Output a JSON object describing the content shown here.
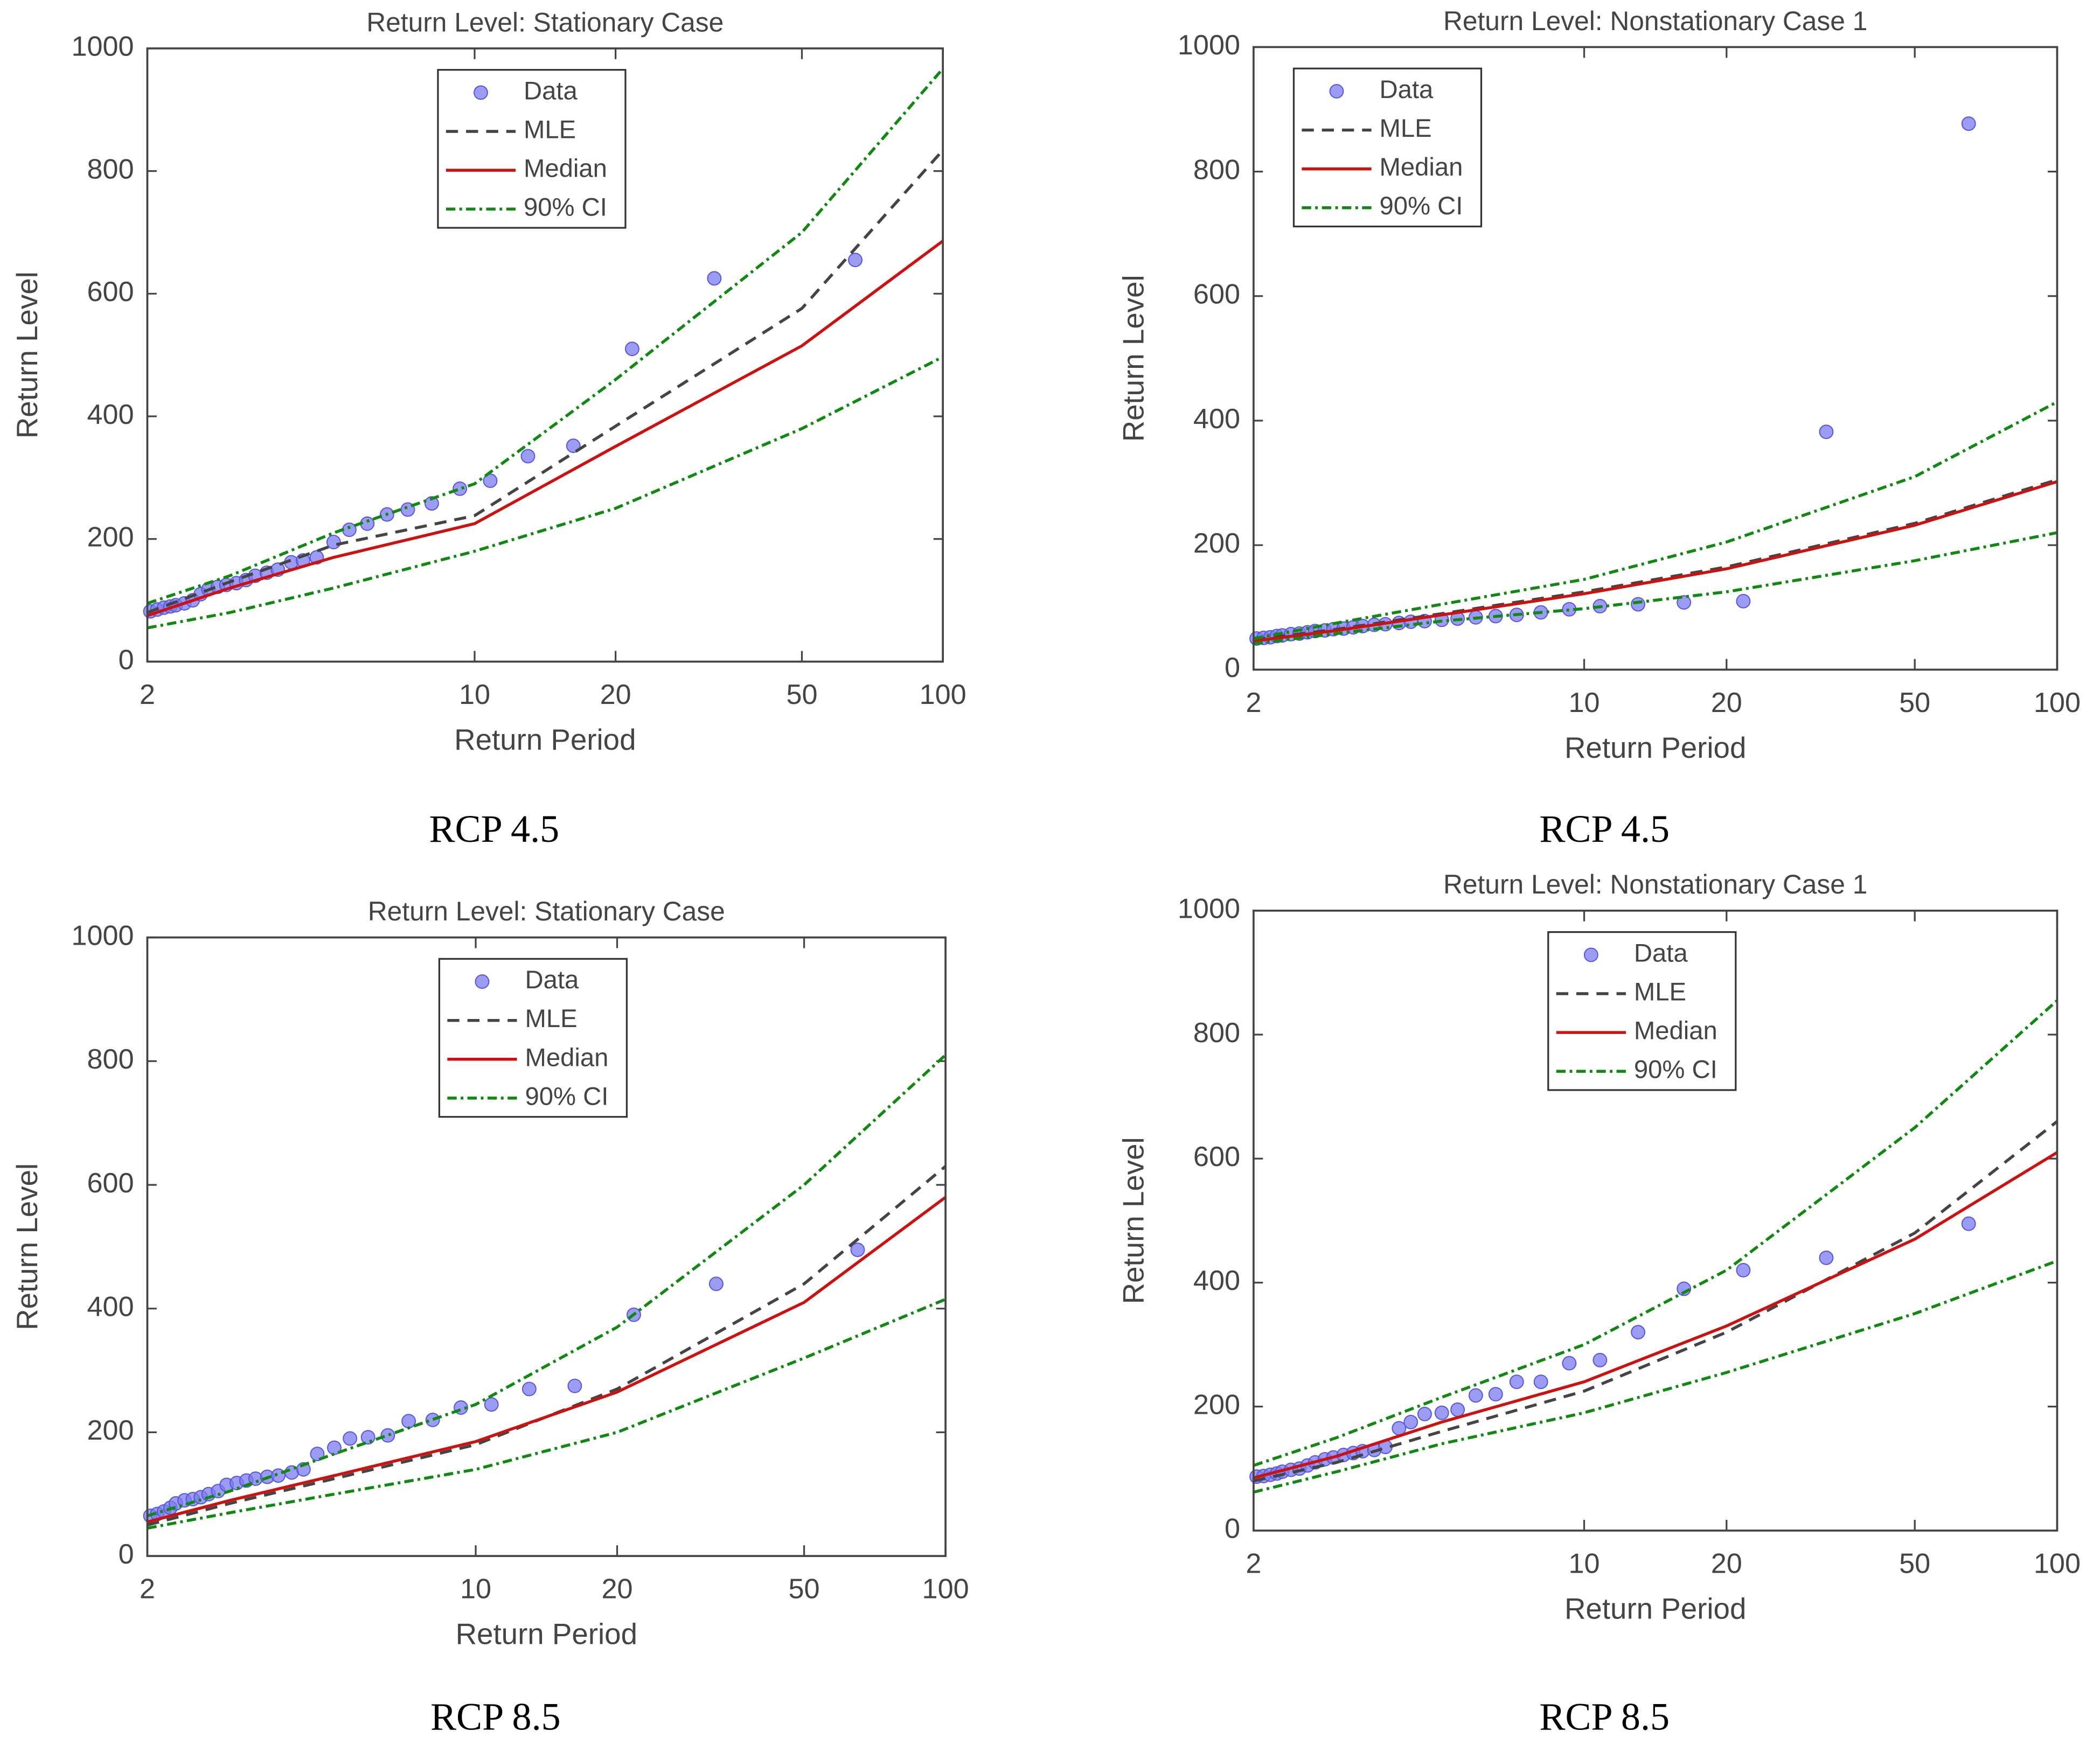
{
  "chart_data": [
    {
      "type": "line",
      "title": "Return Level: Stationary Case",
      "xlabel": "Return Period",
      "ylabel": "Return Level",
      "caption": "RCP 4.5",
      "xscale": "log",
      "xlim": [
        2,
        100
      ],
      "xticks": [
        2,
        10,
        20,
        50,
        100
      ],
      "ylim": [
        0,
        1000
      ],
      "yticks": [
        0,
        200,
        400,
        600,
        800,
        1000
      ],
      "legend": "top",
      "series": [
        {
          "name": "Data",
          "color": "#7b7bf0",
          "style": "marker",
          "x": [
            2.03,
            2.1,
            2.17,
            2.24,
            2.3,
            2.4,
            2.5,
            2.6,
            2.7,
            2.83,
            2.95,
            3.1,
            3.25,
            3.4,
            3.6,
            3.8,
            4.06,
            4.3,
            4.6,
            5.0,
            5.4,
            5.9,
            6.5,
            7.2,
            8.1,
            9.3,
            10.8,
            13,
            16.25,
            21.7,
            32.5,
            65
          ],
          "values": [
            82,
            85,
            88,
            90,
            92,
            95,
            100,
            110,
            118,
            122,
            125,
            128,
            133,
            140,
            145,
            150,
            162,
            165,
            170,
            195,
            215,
            225,
            240,
            248,
            258,
            282,
            295,
            335,
            352,
            510,
            625,
            655
          ]
        },
        {
          "name": "MLE",
          "color": "#444444",
          "style": "dashed",
          "x": [
            2,
            3,
            5,
            10,
            20,
            50,
            100
          ],
          "values": [
            80,
            130,
            190,
            238,
            384,
            576,
            834
          ]
        },
        {
          "name": "Median",
          "color": "#cc1111",
          "style": "solid",
          "x": [
            2,
            3,
            5,
            10,
            20,
            50,
            100
          ],
          "values": [
            75,
            120,
            170,
            225,
            351,
            515,
            686
          ]
        },
        {
          "name": "90% CI",
          "color": "#118811",
          "style": "dashdot",
          "x": [
            2,
            3,
            5,
            10,
            20,
            50,
            100
          ],
          "values": [
            95,
            140,
            210,
            290,
            460,
            700,
            967
          ],
          "lower": [
            55,
            80,
            120,
            180,
            250,
            380,
            497
          ]
        }
      ]
    },
    {
      "type": "line",
      "title": "Return Level: Nonstationary Case 1",
      "xlabel": "Return Period",
      "ylabel": "Return Level",
      "caption": "RCP 4.5",
      "xscale": "log",
      "xlim": [
        2,
        100
      ],
      "xticks": [
        2,
        10,
        20,
        50,
        100
      ],
      "ylim": [
        0,
        1000
      ],
      "yticks": [
        0,
        200,
        400,
        600,
        800,
        1000
      ],
      "legend": "top-left",
      "series": [
        {
          "name": "Data",
          "color": "#7b7bf0",
          "style": "marker",
          "x": [
            2.03,
            2.1,
            2.17,
            2.24,
            2.3,
            2.4,
            2.5,
            2.6,
            2.7,
            2.83,
            2.95,
            3.1,
            3.25,
            3.4,
            3.6,
            3.8,
            4.06,
            4.3,
            4.6,
            5.0,
            5.4,
            5.9,
            6.5,
            7.2,
            8.1,
            9.3,
            10.8,
            13,
            16.25,
            21.7,
            32.5,
            65
          ],
          "values": [
            50,
            51,
            52,
            54,
            55,
            57,
            58,
            60,
            62,
            63,
            65,
            66,
            68,
            70,
            72,
            73,
            75,
            77,
            78,
            80,
            82,
            84,
            86,
            88,
            92,
            97,
            102,
            105,
            108,
            110,
            382,
            877
          ]
        },
        {
          "name": "MLE",
          "color": "#444444",
          "style": "dashed",
          "x": [
            2,
            3,
            5,
            10,
            20,
            50,
            100
          ],
          "values": [
            48,
            65,
            90,
            125,
            165,
            235,
            305
          ]
        },
        {
          "name": "Median",
          "color": "#cc1111",
          "style": "solid",
          "x": [
            2,
            3,
            5,
            10,
            20,
            50,
            100
          ],
          "values": [
            46,
            63,
            88,
            122,
            162,
            232,
            302
          ]
        },
        {
          "name": "90% CI",
          "color": "#118811",
          "style": "dashdot",
          "x": [
            2,
            3,
            5,
            10,
            20,
            50,
            100
          ],
          "values": [
            50,
            75,
            105,
            145,
            205,
            310,
            430
          ],
          "lower": [
            42,
            58,
            78,
            98,
            125,
            175,
            220
          ]
        }
      ]
    },
    {
      "type": "line",
      "title": "Return Level: Stationary Case",
      "xlabel": "Return Period",
      "ylabel": "Return Level",
      "caption": "RCP 8.5",
      "xscale": "log",
      "xlim": [
        2,
        100
      ],
      "xticks": [
        2,
        10,
        20,
        50,
        100
      ],
      "ylim": [
        0,
        1000
      ],
      "yticks": [
        0,
        200,
        400,
        600,
        800,
        1000
      ],
      "legend": "top",
      "series": [
        {
          "name": "Data",
          "color": "#7b7bf0",
          "style": "marker",
          "x": [
            2.03,
            2.1,
            2.17,
            2.24,
            2.3,
            2.4,
            2.5,
            2.6,
            2.7,
            2.83,
            2.95,
            3.1,
            3.25,
            3.4,
            3.6,
            3.8,
            4.06,
            4.3,
            4.6,
            5.0,
            5.4,
            5.9,
            6.5,
            7.2,
            8.1,
            9.3,
            10.8,
            13,
            16.25,
            21.7,
            32.5,
            65
          ],
          "values": [
            65,
            68,
            72,
            78,
            85,
            90,
            92,
            95,
            100,
            105,
            115,
            118,
            122,
            125,
            128,
            130,
            135,
            140,
            165,
            175,
            190,
            192,
            195,
            218,
            220,
            240,
            245,
            270,
            275,
            390,
            440,
            495
          ]
        },
        {
          "name": "MLE",
          "color": "#444444",
          "style": "dashed",
          "x": [
            2,
            3,
            5,
            10,
            20,
            50,
            100
          ],
          "values": [
            50,
            85,
            125,
            180,
            270,
            440,
            630
          ]
        },
        {
          "name": "Median",
          "color": "#cc1111",
          "style": "solid",
          "x": [
            2,
            3,
            5,
            10,
            20,
            50,
            100
          ],
          "values": [
            55,
            90,
            130,
            185,
            265,
            410,
            580
          ]
        },
        {
          "name": "90% CI",
          "color": "#118811",
          "style": "dashdot",
          "x": [
            2,
            3,
            5,
            10,
            20,
            50,
            100
          ],
          "values": [
            65,
            105,
            165,
            245,
            370,
            600,
            810
          ],
          "lower": [
            45,
            70,
            100,
            140,
            200,
            320,
            415
          ]
        }
      ]
    },
    {
      "type": "line",
      "title": "Return Level: Nonstationary Case 1",
      "xlabel": "Return Period",
      "ylabel": "Return Level",
      "caption": "RCP 8.5",
      "xscale": "log",
      "xlim": [
        2,
        100
      ],
      "xticks": [
        2,
        10,
        20,
        50,
        100
      ],
      "ylim": [
        0,
        1000
      ],
      "yticks": [
        0,
        200,
        400,
        600,
        800,
        1000
      ],
      "legend": "top",
      "series": [
        {
          "name": "Data",
          "color": "#7b7bf0",
          "style": "marker",
          "x": [
            2.03,
            2.1,
            2.17,
            2.24,
            2.3,
            2.4,
            2.5,
            2.6,
            2.7,
            2.83,
            2.95,
            3.1,
            3.25,
            3.4,
            3.6,
            3.8,
            4.06,
            4.3,
            4.6,
            5.0,
            5.4,
            5.9,
            6.5,
            7.2,
            8.1,
            9.3,
            10.8,
            13,
            16.25,
            21.7,
            32.5,
            65
          ],
          "values": [
            87,
            88,
            90,
            92,
            95,
            98,
            100,
            105,
            110,
            115,
            118,
            122,
            125,
            128,
            130,
            135,
            165,
            175,
            188,
            190,
            195,
            218,
            220,
            240,
            240,
            270,
            275,
            320,
            390,
            420,
            440,
            495
          ]
        },
        {
          "name": "MLE",
          "color": "#444444",
          "style": "dashed",
          "x": [
            2,
            3,
            5,
            10,
            20,
            50,
            100
          ],
          "values": [
            80,
            110,
            160,
            225,
            320,
            480,
            660
          ]
        },
        {
          "name": "Median",
          "color": "#cc1111",
          "style": "solid",
          "x": [
            2,
            3,
            5,
            10,
            20,
            50,
            100
          ],
          "values": [
            85,
            120,
            175,
            240,
            330,
            470,
            610
          ]
        },
        {
          "name": "90% CI",
          "color": "#118811",
          "style": "dashdot",
          "x": [
            2,
            3,
            5,
            10,
            20,
            50,
            100
          ],
          "values": [
            105,
            150,
            215,
            300,
            420,
            650,
            855
          ],
          "lower": [
            62,
            95,
            140,
            190,
            255,
            350,
            435
          ]
        }
      ]
    }
  ]
}
